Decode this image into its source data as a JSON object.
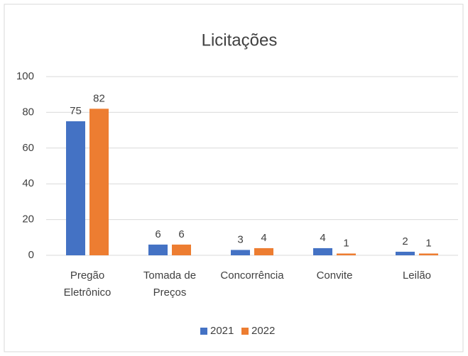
{
  "chart_data": {
    "type": "bar",
    "title": "Licitações",
    "categories": [
      "Pregão Eletrônico",
      "Tomada de Preços",
      "Concorrência",
      "Convite",
      "Leilão"
    ],
    "series": [
      {
        "name": "2021",
        "color": "#4472c4",
        "values": [
          75,
          6,
          3,
          4,
          2
        ]
      },
      {
        "name": "2022",
        "color": "#ed7d31",
        "values": [
          82,
          6,
          4,
          1,
          1
        ]
      }
    ],
    "ylim": [
      0,
      100
    ],
    "yticks": [
      0,
      20,
      40,
      60,
      80,
      100
    ],
    "grid": true,
    "legend": "bottom"
  }
}
